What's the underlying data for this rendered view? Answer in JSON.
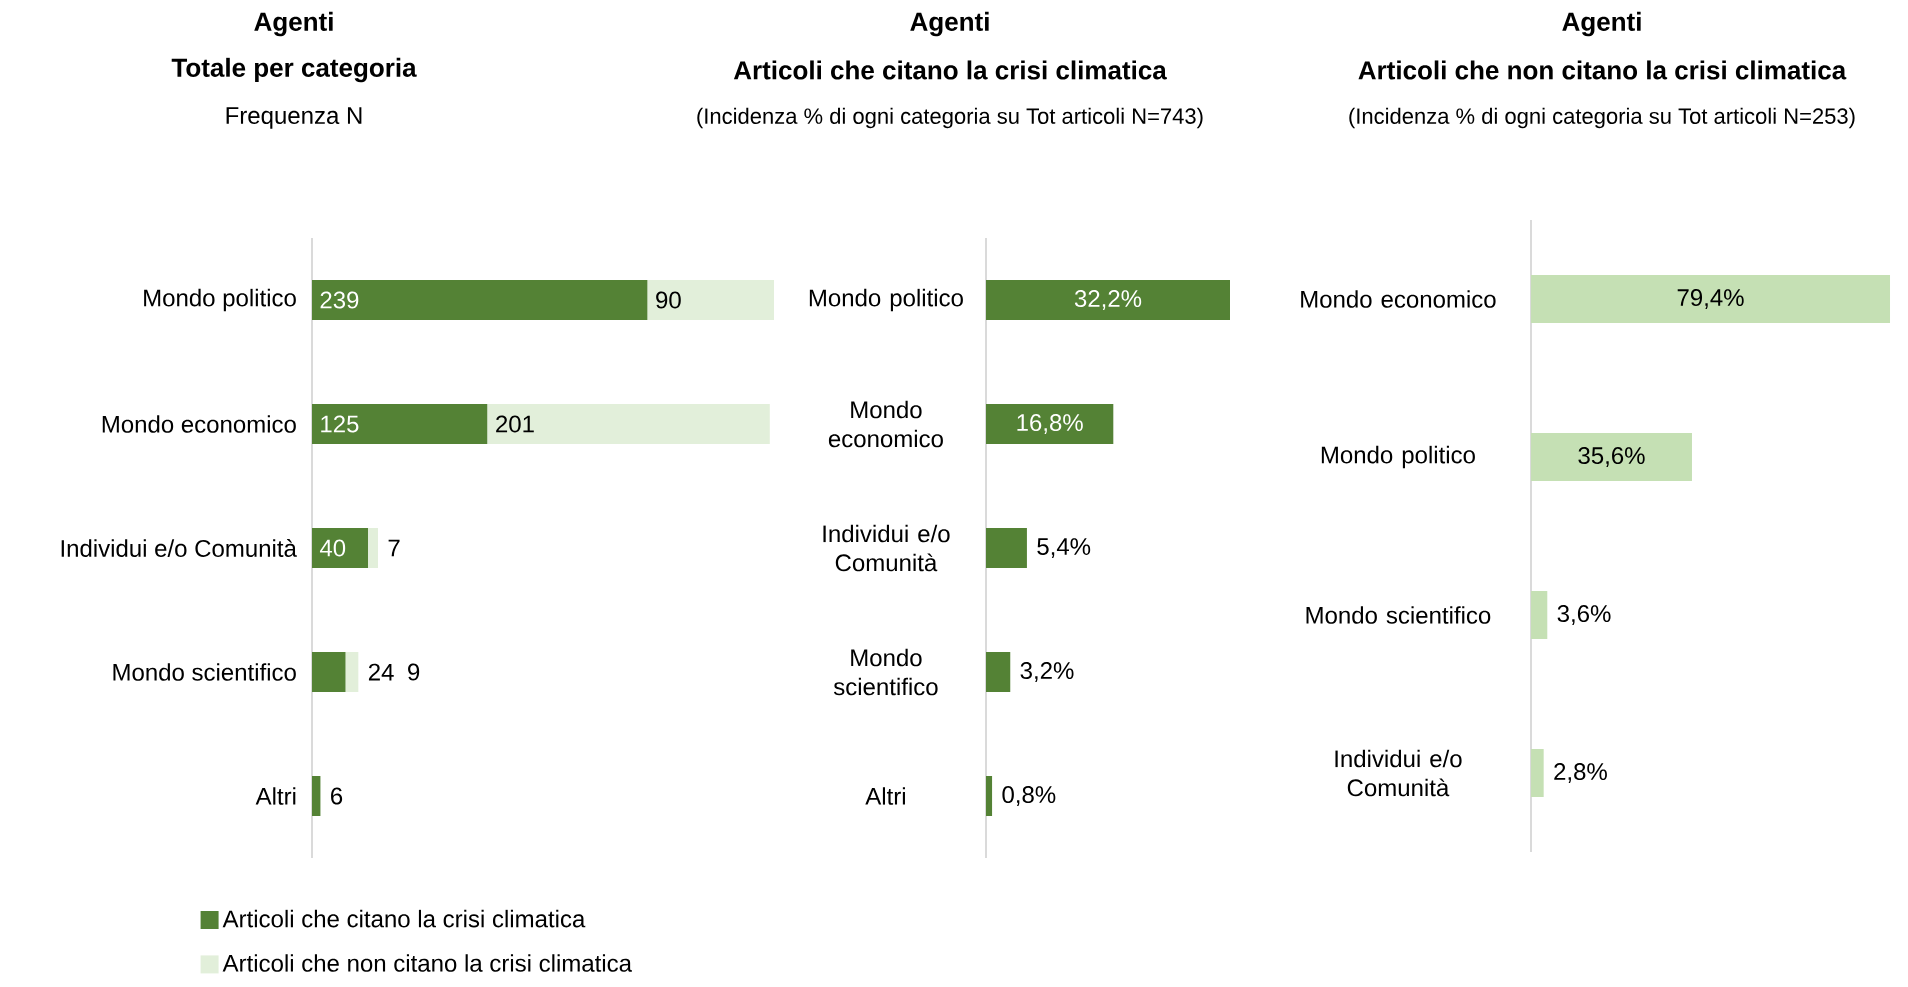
{
  "chart_data": [
    {
      "type": "bar",
      "orientation": "horizontal",
      "stacked": true,
      "title": "Agenti",
      "subtitle": "Totale per categoria",
      "annotations": [
        "Frequenza N"
      ],
      "categories": [
        "Mondo politico",
        "Mondo economico",
        "Individui e/o Comunità",
        "Mondo scientifico",
        "Altri"
      ],
      "data_labels": true,
      "legend": "bottom",
      "series": [
        {
          "name": "Articoli che citano la crisi climatica",
          "color": "#548235",
          "values": [
            239,
            125,
            40,
            24,
            6
          ]
        },
        {
          "name": "Articoli che non citano la crisi climatica",
          "color": "#e2efda",
          "values": [
            90,
            201,
            7,
            9,
            null
          ]
        }
      ]
    },
    {
      "type": "bar",
      "orientation": "horizontal",
      "title": "Agenti",
      "subtitle": "Articoli che citano la crisi climatica",
      "annotations": [
        "(Incidenza % di ogni categoria su Tot articoli N=743)"
      ],
      "categories": [
        "Mondo politico",
        "Mondo economico",
        "Individui e/o Comunità",
        "Mondo scientifico",
        "Altri"
      ],
      "series": [
        {
          "color": "#548235",
          "values": [
            32.2,
            16.8,
            5.4,
            3.2,
            0.8
          ],
          "value_labels": [
            "32,2%",
            "16,8%",
            "5,4%",
            "3,2%",
            "0,8%"
          ]
        }
      ]
    },
    {
      "type": "bar",
      "orientation": "horizontal",
      "title": "Agenti",
      "subtitle": "Articoli che non citano la crisi climatica",
      "annotations": [
        "(Incidenza % di ogni categoria su  Tot articoli N=253)"
      ],
      "categories": [
        "Mondo economico",
        "Mondo politico",
        "Mondo scientifico",
        "Individui e/o Comunità"
      ],
      "series": [
        {
          "color": "#c5e0b4",
          "values": [
            79.4,
            35.6,
            3.6,
            2.8
          ],
          "value_labels": [
            "79,4%",
            "35,6%",
            "3,6%",
            "2,8%"
          ]
        }
      ]
    }
  ]
}
